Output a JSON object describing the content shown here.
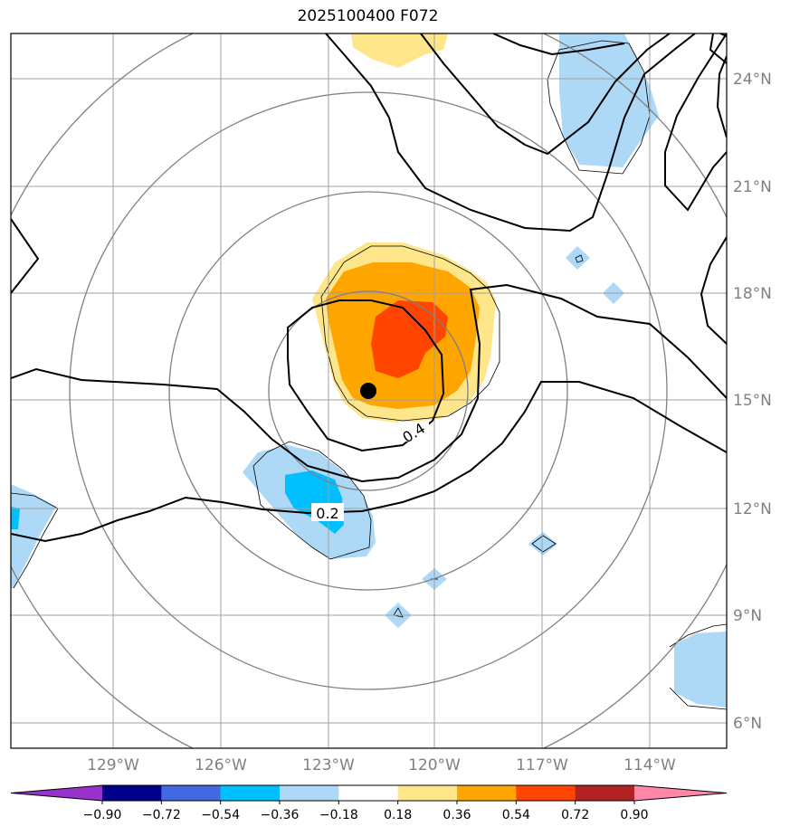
{
  "title": "2025100400 F072",
  "map": {
    "lat_labels": [
      "24°N",
      "21°N",
      "18°N",
      "15°N",
      "12°N",
      "9°N",
      "6°N"
    ],
    "lon_labels": [
      "129°W",
      "126°W",
      "123°W",
      "120°W",
      "117°W",
      "114°W"
    ],
    "contour_labels": [
      "0.4",
      "0.2"
    ],
    "storm_center": {
      "lat": 15.3,
      "lon": "121.8°W"
    }
  },
  "colorbar": {
    "ticks": [
      "−0.90",
      "−0.72",
      "−0.54",
      "−0.36",
      "−0.18",
      "0.18",
      "0.36",
      "0.54",
      "0.72",
      "0.90"
    ],
    "colors": [
      "#9932cc",
      "#00008b",
      "#4169e1",
      "#00bfff",
      "#add8f6",
      "#ffffff",
      "#ffe68a",
      "#ffa500",
      "#ff4500",
      "#b22222",
      "#ff88aa"
    ]
  }
}
